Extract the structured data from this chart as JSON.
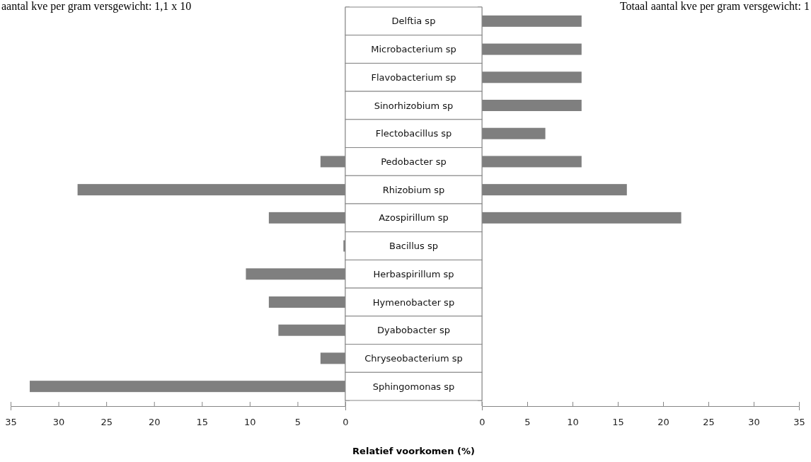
{
  "chart_data": [
    {
      "type": "bar",
      "orientation": "horizontal",
      "title": "aantal kve per gram versgewicht: 1,1 x 10",
      "categories": [
        "Delftia sp",
        "Microbacterium sp",
        "Flavobacterium sp",
        "Sinorhizobium sp",
        "Flectobacillus sp",
        "Pedobacter sp",
        "Rhizobium sp",
        "Azospirillum sp",
        "Bacillus sp",
        "Herbaspirillum sp",
        "Hymenobacter sp",
        "Dyabobacter sp",
        "Chryseobacterium sp",
        "Sphingomonas sp"
      ],
      "values": [
        null,
        null,
        null,
        null,
        null,
        2.6,
        28,
        8,
        0.2,
        10.4,
        8,
        7,
        2.6,
        33
      ],
      "color": "#7f7f7f",
      "xlim": [
        35,
        0
      ],
      "xticks": [
        35,
        30,
        25,
        20,
        15,
        10,
        5,
        0
      ],
      "tick_labels": "x",
      "grid": false
    },
    {
      "type": "bar",
      "orientation": "horizontal",
      "title": "Totaal aantal kve per gram versgewicht: 1",
      "xlabel": "Relatief voorkomen (%)",
      "categories": [
        "Delftia sp",
        "Microbacterium sp",
        "Flavobacterium sp",
        "Sinorhizobium sp",
        "Flectobacillus sp",
        "Pedobacter sp",
        "Rhizobium sp",
        "Azospirillum sp",
        "Bacillus sp",
        "Herbaspirillum sp",
        "Hymenobacter sp",
        "Dyabobacter sp",
        "Chryseobacterium sp",
        "Sphingomonas sp"
      ],
      "values": [
        11,
        11,
        11,
        11,
        7,
        11,
        16,
        22,
        null,
        null,
        null,
        null,
        null,
        null
      ],
      "color": "#7f7f7f",
      "xlim": [
        0,
        35
      ],
      "xticks": [
        0,
        5,
        10,
        15,
        20,
        25,
        30,
        35
      ],
      "grid": false
    }
  ]
}
